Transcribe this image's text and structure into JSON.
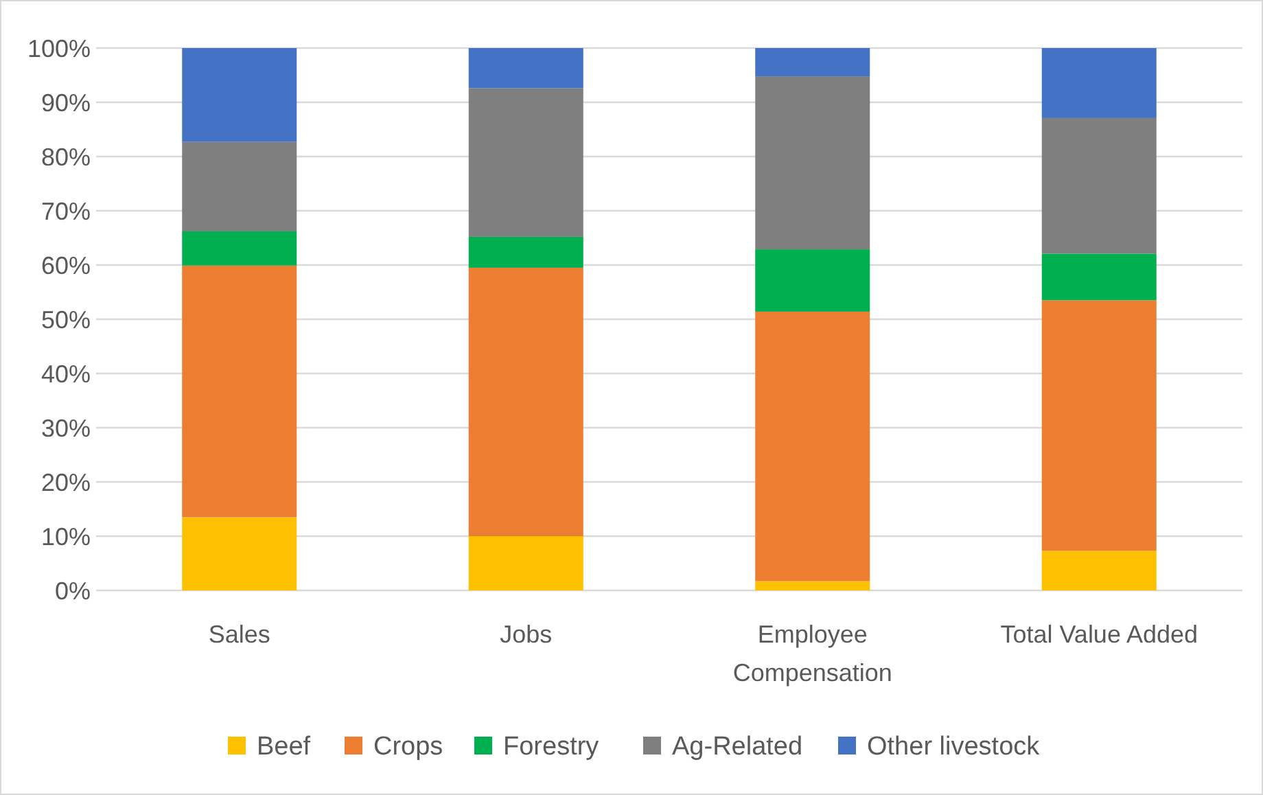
{
  "chart_data": {
    "type": "bar",
    "stacked": true,
    "categories": [
      "Sales",
      "Jobs",
      "Employee Compensation",
      "Total Value Added"
    ],
    "series": [
      {
        "name": "Beef",
        "color": "#ffc000",
        "values": [
          13.5,
          10.0,
          1.7,
          7.3
        ]
      },
      {
        "name": "Crops",
        "color": "#ed7d31",
        "values": [
          46.4,
          49.5,
          49.7,
          46.2
        ]
      },
      {
        "name": "Forestry",
        "color": "#00b050",
        "values": [
          6.3,
          5.7,
          11.5,
          8.6
        ]
      },
      {
        "name": "Ag-Related",
        "color": "#7f7f7f",
        "values": [
          16.5,
          27.4,
          31.9,
          25.0
        ]
      },
      {
        "name": "Other livestock",
        "color": "#4472c4",
        "values": [
          17.3,
          7.4,
          5.2,
          12.9
        ]
      }
    ],
    "ylim": [
      0,
      100
    ],
    "yticks": [
      {
        "value": 0,
        "label": "0%"
      },
      {
        "value": 10,
        "label": "10%"
      },
      {
        "value": 20,
        "label": "20%"
      },
      {
        "value": 30,
        "label": "30%"
      },
      {
        "value": 40,
        "label": "40%"
      },
      {
        "value": 50,
        "label": "50%"
      },
      {
        "value": 60,
        "label": "60%"
      },
      {
        "value": 70,
        "label": "70%"
      },
      {
        "value": 80,
        "label": "80%"
      },
      {
        "value": 90,
        "label": "90%"
      },
      {
        "value": 100,
        "label": "100%"
      }
    ],
    "grid": "y",
    "legend": "bottom"
  }
}
